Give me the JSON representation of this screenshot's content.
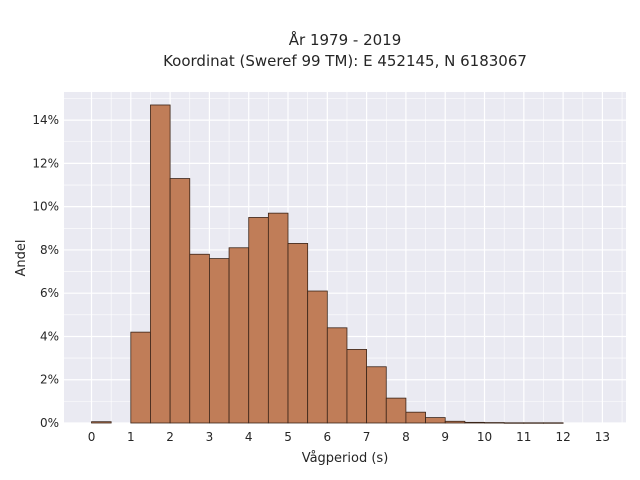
{
  "chart_data": {
    "type": "bar",
    "title_line1": "År 1979 - 2019",
    "title_line2": "Koordinat (Sweref 99 TM): E 452145, N 6183067",
    "xlabel": "Vågperiod (s)",
    "ylabel": "Andel",
    "xlim": [
      -0.7,
      13.6
    ],
    "ylim": [
      0,
      15.3
    ],
    "x_ticks": [
      "0",
      "1",
      "2",
      "3",
      "4",
      "5",
      "6",
      "7",
      "8",
      "9",
      "10",
      "11",
      "12",
      "13"
    ],
    "y_ticks": [
      "0%",
      "2%",
      "4%",
      "6%",
      "8%",
      "10%",
      "12%",
      "14%"
    ],
    "grid": true,
    "bin_width": 0.5,
    "bin_starts": [
      0,
      1,
      1.5,
      2,
      2.5,
      3,
      3.5,
      4,
      4.5,
      5,
      5.5,
      6,
      6.5,
      7,
      7.5,
      8,
      8.5,
      9,
      9.5,
      10,
      10.5,
      11,
      11.5
    ],
    "values": [
      0.06,
      4.2,
      14.7,
      11.3,
      7.8,
      7.6,
      8.1,
      9.5,
      9.7,
      8.3,
      6.1,
      4.4,
      3.4,
      2.6,
      1.15,
      0.5,
      0.25,
      0.08,
      0.03,
      0.02,
      0.01,
      0.01,
      0.01
    ],
    "colors": {
      "bar_fill": "#c07d58",
      "bar_stroke": "#3a2418",
      "plot_bg": "#eaeaf2",
      "grid": "#ffffff"
    }
  }
}
